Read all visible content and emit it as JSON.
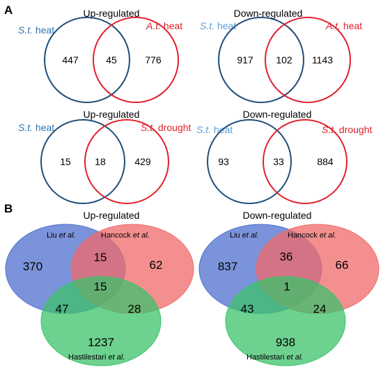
{
  "colors": {
    "st_blue": "#1f4e79",
    "st_label_blue": "#2e75b6",
    "st_label_light": "#5b9bd5",
    "at_red": "#e0212b",
    "liu_fill": "#4f6fce",
    "hancock_fill": "#f06a6a",
    "hast_fill": "#3cc26a"
  },
  "panel_a": {
    "letter": "A",
    "venns": [
      {
        "title": "Up-regulated",
        "left": {
          "abbr": "S.t.",
          "rest": " heat"
        },
        "right": {
          "abbr": "A.t.",
          "rest": " heat"
        },
        "left_only": "447",
        "overlap": "45",
        "right_only": "776"
      },
      {
        "title": "Down-regulated",
        "left": {
          "abbr": "S.t.",
          "rest": " heat"
        },
        "right": {
          "abbr": "A.t.",
          "rest": " heat"
        },
        "left_only": "917",
        "overlap": "102",
        "right_only": "1143"
      },
      {
        "title": "Up-regulated",
        "left": {
          "abbr": "S.t.",
          "rest": " heat"
        },
        "right": {
          "abbr": "S.t.",
          "rest": " drought"
        },
        "left_only": "15",
        "overlap": "18",
        "right_only": "429"
      },
      {
        "title": "Down-regulated",
        "left": {
          "abbr": "S.t.",
          "rest": " heat"
        },
        "right": {
          "abbr": "S.t.",
          "rest": " drought"
        },
        "left_only": "93",
        "overlap": "33",
        "right_only": "884"
      }
    ]
  },
  "panel_b": {
    "letter": "B",
    "venns": [
      {
        "title": "Up-regulated",
        "set_a": {
          "name": "Liu ",
          "etal": "et al."
        },
        "set_b": {
          "name": "Hancock ",
          "etal": "et al."
        },
        "set_c": {
          "name": "Hastilestari ",
          "etal": "et al."
        },
        "a_only": "370",
        "b_only": "62",
        "c_only": "1237",
        "ab": "15",
        "abc": "15",
        "ac": "47",
        "bc": "28"
      },
      {
        "title": "Down-regulated",
        "set_a": {
          "name": "Liu ",
          "etal": "et al."
        },
        "set_b": {
          "name": "Hancock ",
          "etal": "et al."
        },
        "set_c": {
          "name": "Hastilestari ",
          "etal": "et al."
        },
        "a_only": "837",
        "b_only": "66",
        "c_only": "938",
        "ab": "36",
        "abc": "1",
        "ac": "43",
        "bc": "24"
      }
    ]
  }
}
